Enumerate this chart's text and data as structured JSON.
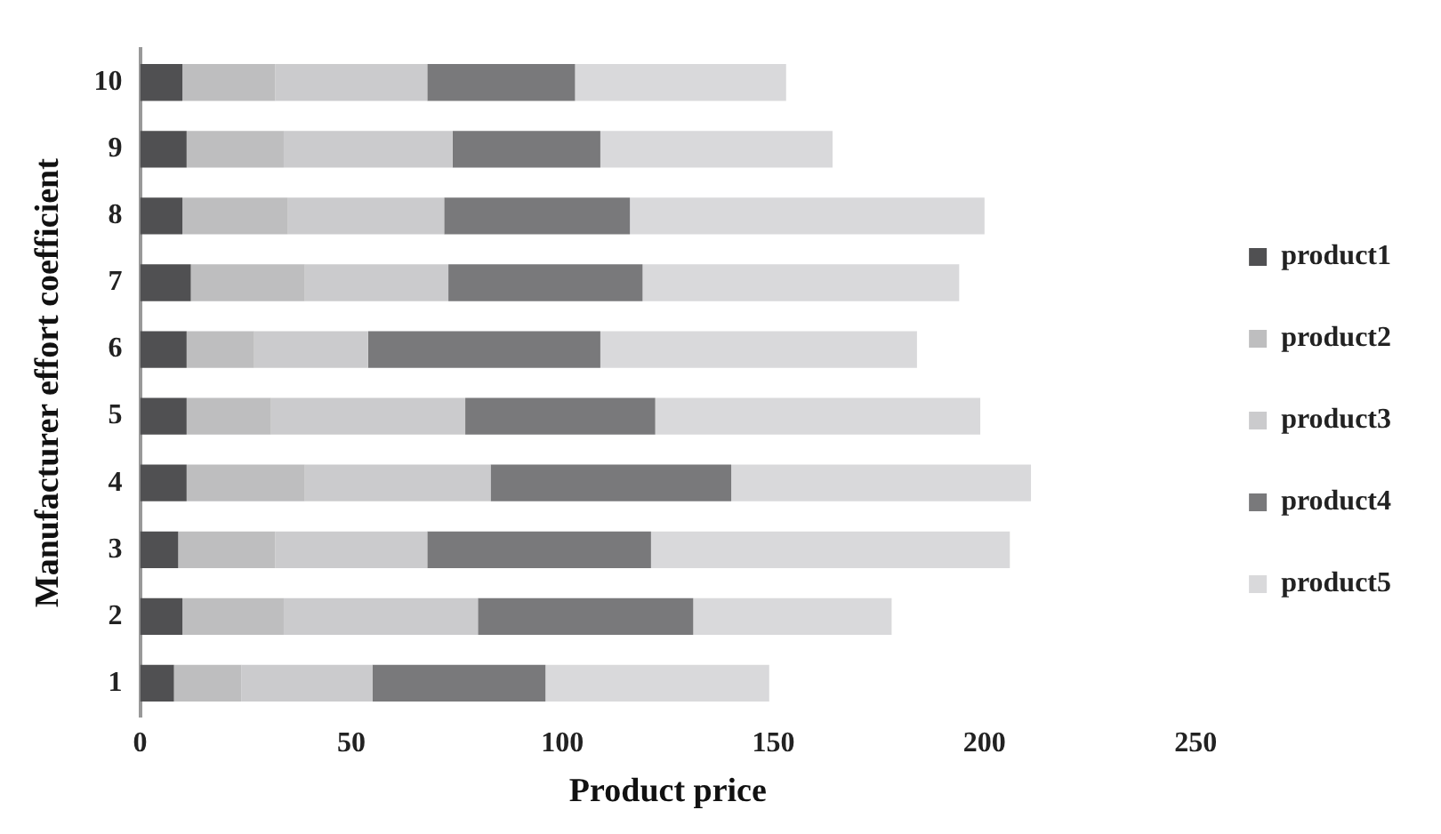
{
  "chart_data": {
    "type": "bar",
    "orientation": "horizontal",
    "stacked": true,
    "xlabel": "Product price",
    "ylabel": "Manufacturer effort coefficient",
    "categories": [
      "10",
      "9",
      "8",
      "7",
      "6",
      "5",
      "4",
      "3",
      "2",
      "1"
    ],
    "series": [
      {
        "name": "product1",
        "color": "#505052",
        "values": [
          10,
          11,
          10,
          12,
          11,
          11,
          11,
          9,
          10,
          8
        ]
      },
      {
        "name": "product2",
        "color": "#bebebf",
        "values": [
          22,
          23,
          25,
          27,
          16,
          20,
          28,
          23,
          24,
          16
        ]
      },
      {
        "name": "product3",
        "color": "#cbcbcd",
        "values": [
          36,
          40,
          37,
          34,
          27,
          46,
          44,
          36,
          46,
          31
        ]
      },
      {
        "name": "product4",
        "color": "#79797b",
        "values": [
          35,
          35,
          44,
          46,
          55,
          45,
          57,
          53,
          51,
          41
        ]
      },
      {
        "name": "product5",
        "color": "#d9d9db",
        "values": [
          50,
          55,
          84,
          75,
          75,
          77,
          71,
          85,
          47,
          53
        ]
      }
    ],
    "xlim": [
      0,
      250
    ],
    "xticks": [
      0,
      50,
      100,
      150,
      200,
      250
    ],
    "grid": false,
    "legend": "right"
  }
}
